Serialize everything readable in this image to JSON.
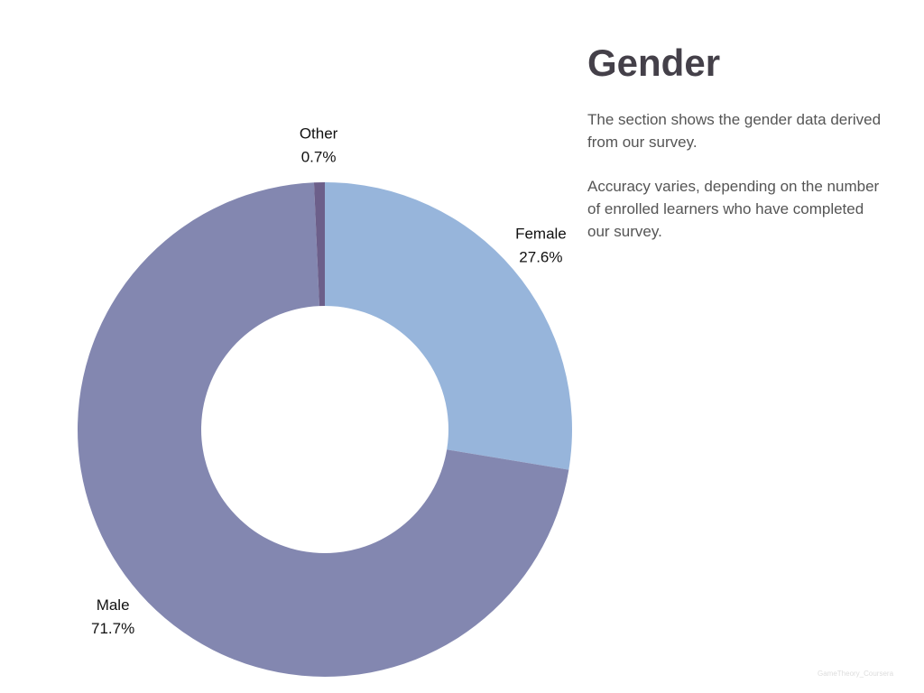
{
  "chart_data": {
    "type": "pie",
    "title": "Gender",
    "categories": [
      "Female",
      "Male",
      "Other"
    ],
    "values": [
      27.6,
      71.7,
      0.7
    ],
    "value_labels": [
      "27.6%",
      "71.7%",
      "0.7%"
    ],
    "colors": [
      "#97b5db",
      "#8387b0",
      "#6c5f8a"
    ],
    "donut": true
  },
  "description": [
    "The section shows the gender data derived from our survey.",
    "Accuracy varies, depending on the number of enrolled learners who have completed our survey."
  ],
  "watermark": "GameTheory_Coursera"
}
